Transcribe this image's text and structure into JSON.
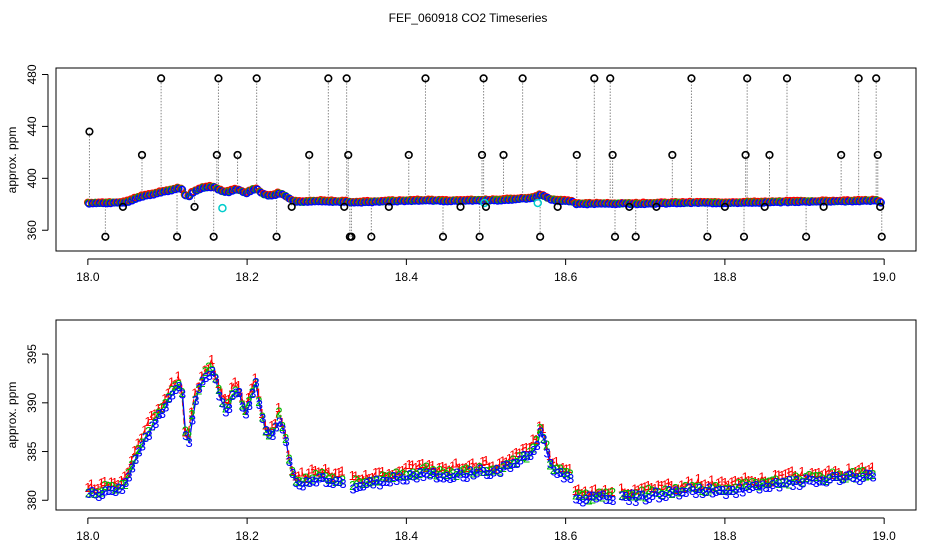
{
  "title": "FEF_060918  CO2 Timeseries",
  "colors": {
    "s1": "#ff0000",
    "s2": "#00bb00",
    "s3": "#0000ff",
    "s4": "#00cccc",
    "raw": "#000000",
    "guide": "#888888"
  },
  "chart_data": [
    {
      "type": "scatter",
      "name": "top-panel",
      "title": "",
      "xlabel": "",
      "ylabel": "approx. ppm",
      "xlim": [
        17.96,
        19.04
      ],
      "ylim": [
        344,
        485
      ],
      "xticks": [
        "18.0",
        "18.2",
        "18.4",
        "18.6",
        "18.8",
        "19.0"
      ],
      "yticks": [
        "360",
        "400",
        "440",
        "480"
      ],
      "spikes": [
        {
          "x": 18.002,
          "y": 436
        },
        {
          "x": 18.022,
          "y": 355
        },
        {
          "x": 18.044,
          "y": 378
        },
        {
          "x": 18.068,
          "y": 418
        },
        {
          "x": 18.092,
          "y": 477
        },
        {
          "x": 18.112,
          "y": 355
        },
        {
          "x": 18.134,
          "y": 378
        },
        {
          "x": 18.158,
          "y": 355
        },
        {
          "x": 18.162,
          "y": 418
        },
        {
          "x": 18.164,
          "y": 477
        },
        {
          "x": 18.188,
          "y": 418
        },
        {
          "x": 18.212,
          "y": 477
        },
        {
          "x": 18.237,
          "y": 355
        },
        {
          "x": 18.256,
          "y": 378
        },
        {
          "x": 18.278,
          "y": 418
        },
        {
          "x": 18.302,
          "y": 477
        },
        {
          "x": 18.322,
          "y": 378
        },
        {
          "x": 18.325,
          "y": 477
        },
        {
          "x": 18.327,
          "y": 418
        },
        {
          "x": 18.329,
          "y": 355
        },
        {
          "x": 18.331,
          "y": 355
        },
        {
          "x": 18.356,
          "y": 355
        },
        {
          "x": 18.378,
          "y": 378
        },
        {
          "x": 18.403,
          "y": 418
        },
        {
          "x": 18.424,
          "y": 477
        },
        {
          "x": 18.446,
          "y": 355
        },
        {
          "x": 18.468,
          "y": 378
        },
        {
          "x": 18.492,
          "y": 355
        },
        {
          "x": 18.495,
          "y": 418
        },
        {
          "x": 18.497,
          "y": 477
        },
        {
          "x": 18.5,
          "y": 378
        },
        {
          "x": 18.522,
          "y": 418
        },
        {
          "x": 18.546,
          "y": 477
        },
        {
          "x": 18.568,
          "y": 355
        },
        {
          "x": 18.59,
          "y": 378
        },
        {
          "x": 18.614,
          "y": 418
        },
        {
          "x": 18.636,
          "y": 477
        },
        {
          "x": 18.656,
          "y": 477
        },
        {
          "x": 18.659,
          "y": 418
        },
        {
          "x": 18.662,
          "y": 355
        },
        {
          "x": 18.68,
          "y": 378
        },
        {
          "x": 18.688,
          "y": 355
        },
        {
          "x": 18.714,
          "y": 378
        },
        {
          "x": 18.734,
          "y": 418
        },
        {
          "x": 18.758,
          "y": 477
        },
        {
          "x": 18.778,
          "y": 355
        },
        {
          "x": 18.8,
          "y": 378
        },
        {
          "x": 18.824,
          "y": 355
        },
        {
          "x": 18.826,
          "y": 418
        },
        {
          "x": 18.828,
          "y": 477
        },
        {
          "x": 18.85,
          "y": 378
        },
        {
          "x": 18.856,
          "y": 418
        },
        {
          "x": 18.878,
          "y": 477
        },
        {
          "x": 18.902,
          "y": 355
        },
        {
          "x": 18.924,
          "y": 378
        },
        {
          "x": 18.946,
          "y": 418
        },
        {
          "x": 18.968,
          "y": 477
        },
        {
          "x": 18.99,
          "y": 477
        },
        {
          "x": 18.992,
          "y": 418
        },
        {
          "x": 18.995,
          "y": 378
        },
        {
          "x": 18.997,
          "y": 355
        }
      ]
    },
    {
      "type": "line",
      "name": "bottom-panel",
      "title": "",
      "xlabel": "",
      "ylabel": "approx. ppm",
      "xlim": [
        17.96,
        19.04
      ],
      "ylim": [
        379,
        398.5
      ],
      "xticks": [
        "18.0",
        "18.2",
        "18.4",
        "18.6",
        "18.8",
        "19.0"
      ],
      "yticks": [
        "380",
        "385",
        "390",
        "395"
      ],
      "series": [
        {
          "name": "1",
          "color": "#ff0000",
          "offset": 0.8
        },
        {
          "name": "2",
          "color": "#00bb00",
          "offset": 0.3
        },
        {
          "name": "3",
          "color": "#0000ff",
          "offset": 0.0
        }
      ],
      "base": {
        "x": [
          18.0,
          18.01,
          18.02,
          18.03,
          18.038,
          18.044,
          18.05,
          18.056,
          18.062,
          18.068,
          18.074,
          18.08,
          18.086,
          18.092,
          18.098,
          18.104,
          18.11,
          18.116,
          18.12,
          18.124,
          18.128,
          18.132,
          18.138,
          18.144,
          18.15,
          18.156,
          18.162,
          18.168,
          18.174,
          18.18,
          18.186,
          18.192,
          18.198,
          18.204,
          18.21,
          18.216,
          18.222,
          18.228,
          18.234,
          18.24,
          18.246,
          18.252,
          18.258,
          18.266,
          18.274,
          18.282,
          18.29,
          18.298,
          18.306,
          18.314,
          18.32
        ],
        "y": [
          380.6,
          380.7,
          380.8,
          380.9,
          381.0,
          381.3,
          382.0,
          383.5,
          385.0,
          386.0,
          386.8,
          387.5,
          388.3,
          389.2,
          390.0,
          390.8,
          391.5,
          392.3,
          388.0,
          385.0,
          387.0,
          389.5,
          391.0,
          392.5,
          393.0,
          393.5,
          391.5,
          390.0,
          389.0,
          390.5,
          391.5,
          390.0,
          388.5,
          390.5,
          392.0,
          389.0,
          387.0,
          386.5,
          387.0,
          388.5,
          386.5,
          384.0,
          382.0,
          381.5,
          381.8,
          382.0,
          382.3,
          382.2,
          382.0,
          381.8,
          381.9
        ]
      },
      "base2": {
        "x": [
          18.332,
          18.35,
          18.37,
          18.39,
          18.41,
          18.43,
          18.45,
          18.47,
          18.49,
          18.51,
          18.53,
          18.545,
          18.555,
          18.562,
          18.568,
          18.574,
          18.58,
          18.59,
          18.6,
          18.606
        ],
        "y": [
          381.3,
          381.6,
          382.0,
          382.3,
          382.6,
          382.8,
          382.3,
          382.6,
          383.0,
          382.8,
          383.6,
          384.2,
          384.6,
          385.5,
          387.2,
          385.5,
          383.5,
          382.7,
          382.5,
          382.0
        ]
      },
      "base3": {
        "x": [
          18.612,
          18.63,
          18.65,
          18.662
        ],
        "y": [
          380.2,
          380.1,
          380.3,
          380.2
        ]
      },
      "base4": {
        "x": [
          18.67,
          18.69,
          18.71,
          18.73,
          18.75,
          18.77,
          18.79,
          18.81,
          18.83,
          18.85,
          18.87,
          18.89,
          18.91,
          18.93,
          18.95,
          18.97,
          18.988
        ],
        "y": [
          380.4,
          380.2,
          380.5,
          380.7,
          380.9,
          381.0,
          380.8,
          381.0,
          381.2,
          381.3,
          381.6,
          381.8,
          381.9,
          382.1,
          382.2,
          382.4,
          382.6
        ]
      }
    }
  ]
}
